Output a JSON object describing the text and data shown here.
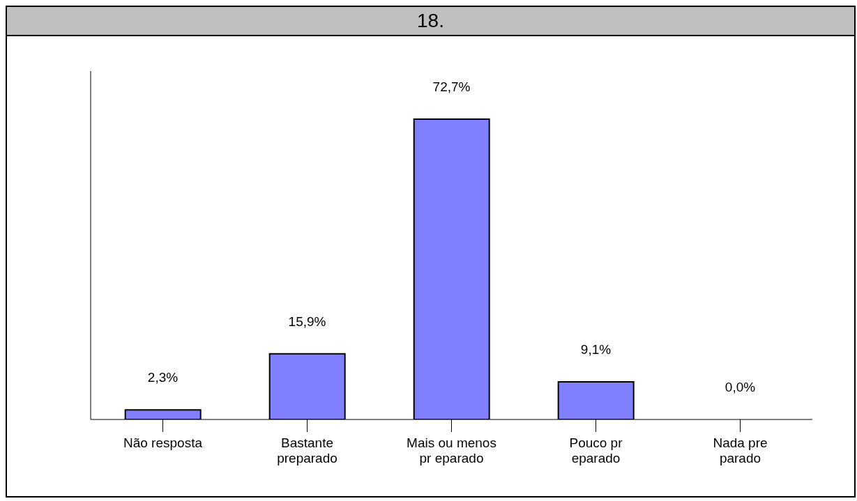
{
  "chart_data": {
    "type": "bar",
    "title": "18.",
    "categories": [
      "Não resposta",
      "Bastante preparado",
      "Mais ou menos pr eparado",
      "Pouco pr eparado",
      "Nada pre parado"
    ],
    "values": [
      2.3,
      15.9,
      72.7,
      9.1,
      0.0
    ],
    "value_labels": [
      "2,3%",
      "15,9%",
      "72,7%",
      "9,1%",
      "0,0%"
    ],
    "color": "#8080ff",
    "grid": false,
    "legend": false
  }
}
